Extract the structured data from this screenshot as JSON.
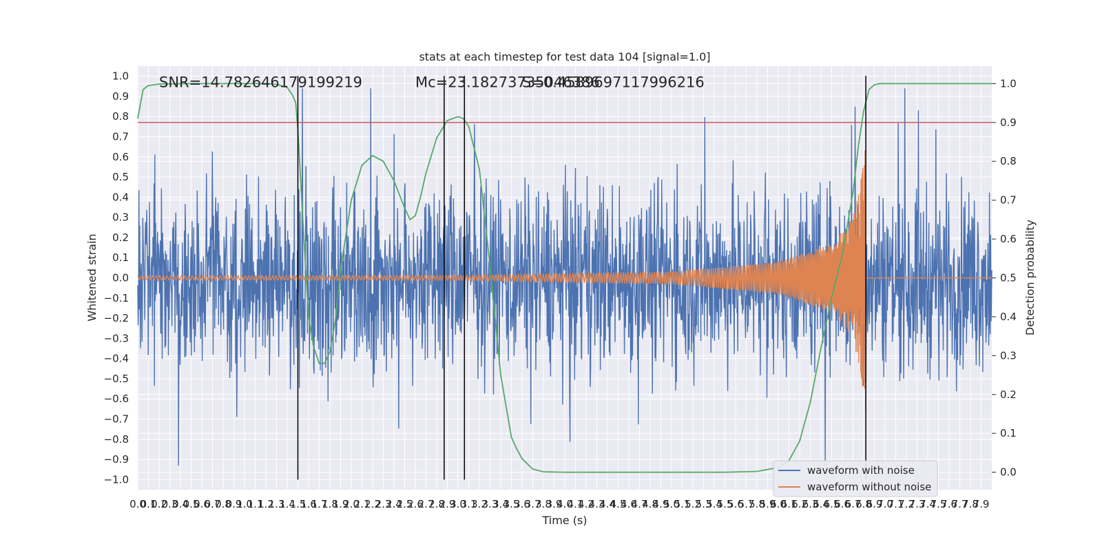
{
  "chart_data": {
    "type": "line",
    "title": "stats at each timestep for test data 104 [signal=1.0]",
    "xlabel": "Time (s)",
    "ylabel": "Whitened strain",
    "y2label": "Detection probability",
    "xlim": [
      0.0,
      8.0
    ],
    "ylim": [
      -1.05,
      1.05
    ],
    "y2lim": [
      -0.045,
      1.045
    ],
    "x_ticks": [
      0.0,
      0.1,
      0.2,
      0.3,
      0.4,
      0.5,
      0.6,
      0.7,
      0.8,
      0.9,
      1.0,
      1.1,
      1.2,
      1.3,
      1.4,
      1.5,
      1.6,
      1.7,
      1.8,
      1.9,
      2.0,
      2.1,
      2.2,
      2.3,
      2.4,
      2.5,
      2.6,
      2.7,
      2.8,
      2.9,
      3.0,
      3.1,
      3.2,
      3.3,
      3.4,
      3.5,
      3.6,
      3.7,
      3.8,
      3.9,
      4.0,
      4.1,
      4.2,
      4.3,
      4.4,
      4.5,
      4.6,
      4.7,
      4.8,
      4.9,
      5.0,
      5.1,
      5.2,
      5.3,
      5.4,
      5.5,
      5.6,
      5.7,
      5.8,
      5.9,
      6.0,
      6.1,
      6.2,
      6.3,
      6.4,
      6.5,
      6.6,
      6.7,
      6.8,
      6.9,
      7.0,
      7.1,
      7.2,
      7.3,
      7.4,
      7.5,
      7.6,
      7.7,
      7.8,
      7.9
    ],
    "y_ticks": [
      -1.0,
      -0.9,
      -0.8,
      -0.7,
      -0.6,
      -0.5,
      -0.4,
      -0.3,
      -0.2,
      -0.1,
      0.0,
      0.1,
      0.2,
      0.3,
      0.4,
      0.5,
      0.6,
      0.7,
      0.8,
      0.9,
      1.0
    ],
    "y2_ticks": [
      0.0,
      0.1,
      0.2,
      0.3,
      0.4,
      0.5,
      0.6,
      0.7,
      0.8,
      0.9,
      1.0
    ],
    "grid": true,
    "legend_position": "lower right",
    "series": [
      {
        "name": "waveform with noise",
        "color": "#4c72b0",
        "kind": "noise",
        "envelope": 0.45,
        "x_range": [
          0.0,
          8.0
        ]
      },
      {
        "name": "waveform without noise",
        "color": "#dd8452",
        "kind": "chirp",
        "merger_time": 6.82,
        "amplitude_points": [
          [
            0.0,
            0.01
          ],
          [
            3.0,
            0.012
          ],
          [
            5.0,
            0.03
          ],
          [
            6.0,
            0.08
          ],
          [
            6.5,
            0.17
          ],
          [
            6.7,
            0.3
          ],
          [
            6.78,
            0.5
          ],
          [
            6.82,
            0.68
          ],
          [
            6.84,
            0.0
          ],
          [
            8.0,
            0.0
          ]
        ],
        "post_merger_value": 0.0
      },
      {
        "name": "",
        "color": "#55a868",
        "axis": "right",
        "x": [
          0.0,
          0.05,
          0.1,
          0.2,
          0.5,
          1.0,
          1.2,
          1.3,
          1.4,
          1.45,
          1.48,
          1.5,
          1.55,
          1.6,
          1.65,
          1.7,
          1.75,
          1.8,
          1.85,
          1.9,
          2.0,
          2.1,
          2.2,
          2.3,
          2.4,
          2.5,
          2.55,
          2.6,
          2.65,
          2.7,
          2.8,
          2.9,
          3.0,
          3.05,
          3.1,
          3.2,
          3.3,
          3.4,
          3.5,
          3.55,
          3.6,
          3.7,
          3.8,
          4.0,
          5.0,
          5.5,
          5.8,
          6.0,
          6.1,
          6.2,
          6.3,
          6.4,
          6.5,
          6.6,
          6.7,
          6.75,
          6.8,
          6.85,
          6.9,
          6.95,
          7.0,
          7.5,
          8.0
        ],
        "y": [
          0.91,
          0.985,
          0.995,
          0.999,
          1.0,
          1.0,
          1.0,
          0.998,
          0.99,
          0.97,
          0.95,
          0.88,
          0.63,
          0.4,
          0.32,
          0.28,
          0.28,
          0.31,
          0.39,
          0.52,
          0.7,
          0.79,
          0.815,
          0.8,
          0.75,
          0.68,
          0.65,
          0.66,
          0.71,
          0.77,
          0.86,
          0.905,
          0.915,
          0.91,
          0.89,
          0.78,
          0.53,
          0.25,
          0.09,
          0.06,
          0.035,
          0.008,
          0.001,
          0.0,
          0.0,
          0.0,
          0.002,
          0.012,
          0.03,
          0.08,
          0.18,
          0.32,
          0.45,
          0.56,
          0.72,
          0.84,
          0.93,
          0.985,
          0.997,
          1.0,
          1.0,
          1.0,
          1.0
        ]
      },
      {
        "name": "",
        "color": "#c44e52",
        "axis": "right",
        "kind": "threshold",
        "value": 0.9
      }
    ],
    "vertical_lines": [
      1.5,
      2.87,
      3.06,
      6.82
    ],
    "vline_range": [
      -1.0,
      1.0
    ],
    "annotations": [
      {
        "text": "SNR=14.782646179199219",
        "x": 0.2,
        "y": 0.97
      },
      {
        "text": "Mc=23.18273735046386",
        "x": 2.6,
        "y": 0.97
      },
      {
        "text": "S=0.4589697117996216",
        "x": 3.6,
        "y": 0.97
      }
    ]
  },
  "colors": {
    "plot_background": "#eaeaf2",
    "grid": "#ffffff",
    "text": "#262626"
  }
}
